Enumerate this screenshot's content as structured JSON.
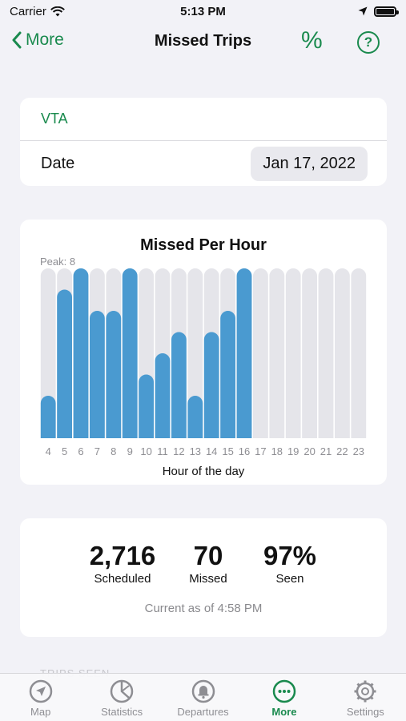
{
  "status": {
    "carrier": "Carrier",
    "time": "5:13 PM"
  },
  "nav": {
    "back_label": "More",
    "title": "Missed Trips",
    "percent_label": "%",
    "help_label": "?"
  },
  "agency": {
    "name": "VTA"
  },
  "date": {
    "label": "Date",
    "value": "Jan 17, 2022"
  },
  "chart_data": {
    "type": "bar",
    "title": "Missed Per Hour",
    "peak_label": "Peak: 8",
    "xlabel": "Hour of the day",
    "ylabel": "",
    "ylim": [
      0,
      8
    ],
    "grid": false,
    "categories": [
      "4",
      "5",
      "6",
      "7",
      "8",
      "9",
      "10",
      "11",
      "12",
      "13",
      "14",
      "15",
      "16",
      "17",
      "18",
      "19",
      "20",
      "21",
      "22",
      "23"
    ],
    "values": [
      2,
      7,
      8,
      6,
      6,
      8,
      3,
      4,
      5,
      2,
      5,
      6,
      8,
      0,
      0,
      0,
      0,
      0,
      0,
      0
    ],
    "bar_color": "#4a9ad0",
    "background_color": "#e5e5ea"
  },
  "stats": {
    "scheduled_value": "2,716",
    "scheduled_label": "Scheduled",
    "missed_value": "70",
    "missed_label": "Missed",
    "seen_value": "97%",
    "seen_label": "Seen",
    "as_of": "Current as of 4:58 PM"
  },
  "peek": {
    "label": "TRIPS SEEN"
  },
  "tabs": [
    {
      "label": "Map",
      "icon": "location-arrow-icon"
    },
    {
      "label": "Statistics",
      "icon": "pie-chart-icon"
    },
    {
      "label": "Departures",
      "icon": "bell-icon"
    },
    {
      "label": "More",
      "icon": "ellipsis-circle-icon"
    },
    {
      "label": "Settings",
      "icon": "gear-icon"
    }
  ],
  "colors": {
    "accent": "#1a8a4e",
    "bar": "#4a9ad0",
    "background": "#f2f2f7"
  }
}
